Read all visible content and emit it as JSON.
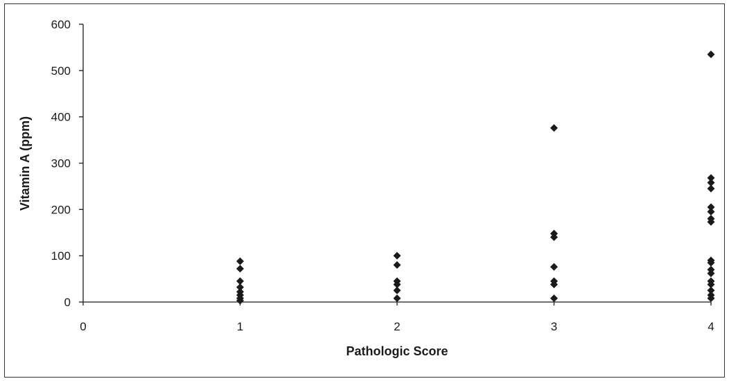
{
  "chart_data": {
    "type": "scatter",
    "title": "",
    "xlabel": "Pathologic Score",
    "ylabel": "Vitamin A (ppm)",
    "xlim": [
      0,
      4
    ],
    "ylim": [
      0,
      600
    ],
    "xticks": [
      0,
      1,
      2,
      3,
      4
    ],
    "yticks": [
      0,
      100,
      200,
      300,
      400,
      500,
      600
    ],
    "xtick_labels": [
      "0",
      "1",
      "2",
      "3",
      "4"
    ],
    "ytick_labels": [
      "0",
      "100",
      "200",
      "300",
      "400",
      "500",
      "600"
    ],
    "grid": false,
    "legend": "none",
    "marker": "diamond",
    "marker_color": "#1a1a1a",
    "points": [
      {
        "x": 1,
        "y": 88
      },
      {
        "x": 1,
        "y": 72
      },
      {
        "x": 1,
        "y": 45
      },
      {
        "x": 1,
        "y": 32
      },
      {
        "x": 1,
        "y": 22
      },
      {
        "x": 1,
        "y": 15
      },
      {
        "x": 1,
        "y": 8
      },
      {
        "x": 1,
        "y": 3
      },
      {
        "x": 2,
        "y": 100
      },
      {
        "x": 2,
        "y": 80
      },
      {
        "x": 2,
        "y": 45
      },
      {
        "x": 2,
        "y": 38
      },
      {
        "x": 2,
        "y": 25
      },
      {
        "x": 2,
        "y": 8
      },
      {
        "x": 3,
        "y": 376
      },
      {
        "x": 3,
        "y": 148
      },
      {
        "x": 3,
        "y": 140
      },
      {
        "x": 3,
        "y": 76
      },
      {
        "x": 3,
        "y": 45
      },
      {
        "x": 3,
        "y": 38
      },
      {
        "x": 3,
        "y": 8
      },
      {
        "x": 4,
        "y": 535
      },
      {
        "x": 4,
        "y": 268
      },
      {
        "x": 4,
        "y": 258
      },
      {
        "x": 4,
        "y": 245
      },
      {
        "x": 4,
        "y": 205
      },
      {
        "x": 4,
        "y": 195
      },
      {
        "x": 4,
        "y": 180
      },
      {
        "x": 4,
        "y": 173
      },
      {
        "x": 4,
        "y": 90
      },
      {
        "x": 4,
        "y": 85
      },
      {
        "x": 4,
        "y": 70
      },
      {
        "x": 4,
        "y": 62
      },
      {
        "x": 4,
        "y": 45
      },
      {
        "x": 4,
        "y": 38
      },
      {
        "x": 4,
        "y": 25
      },
      {
        "x": 4,
        "y": 15
      },
      {
        "x": 4,
        "y": 8
      }
    ]
  }
}
